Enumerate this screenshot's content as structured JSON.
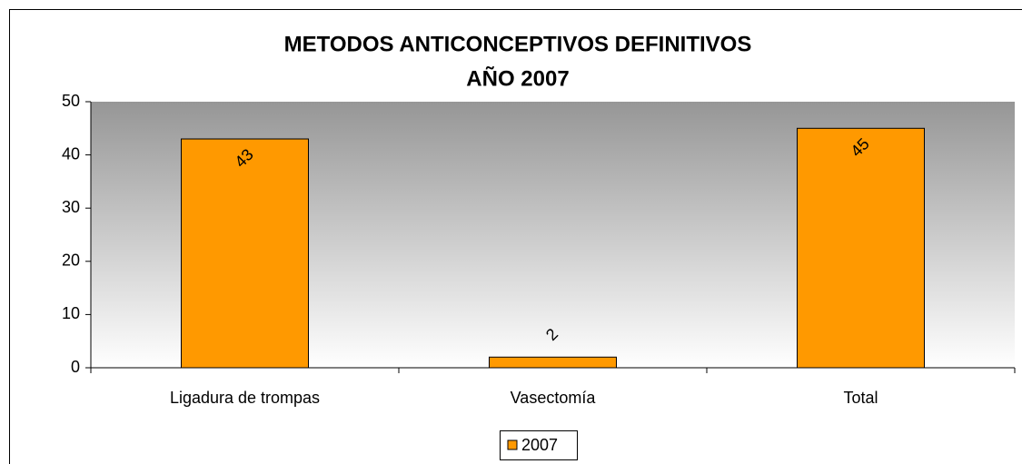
{
  "chart_data": {
    "type": "bar",
    "title": [
      "METODOS ANTICONCEPTIVOS DEFINITIVOS",
      "AÑO 2007"
    ],
    "categories": [
      "Ligadura de trompas",
      "Vasectomía",
      "Total"
    ],
    "series": [
      {
        "name": "2007",
        "color": "#ff9900",
        "values": [
          43,
          2,
          45
        ]
      }
    ],
    "ylim": [
      0,
      50
    ],
    "yticks": [
      0,
      10,
      20,
      30,
      40,
      50
    ],
    "grid": false,
    "legend": "bottom"
  }
}
